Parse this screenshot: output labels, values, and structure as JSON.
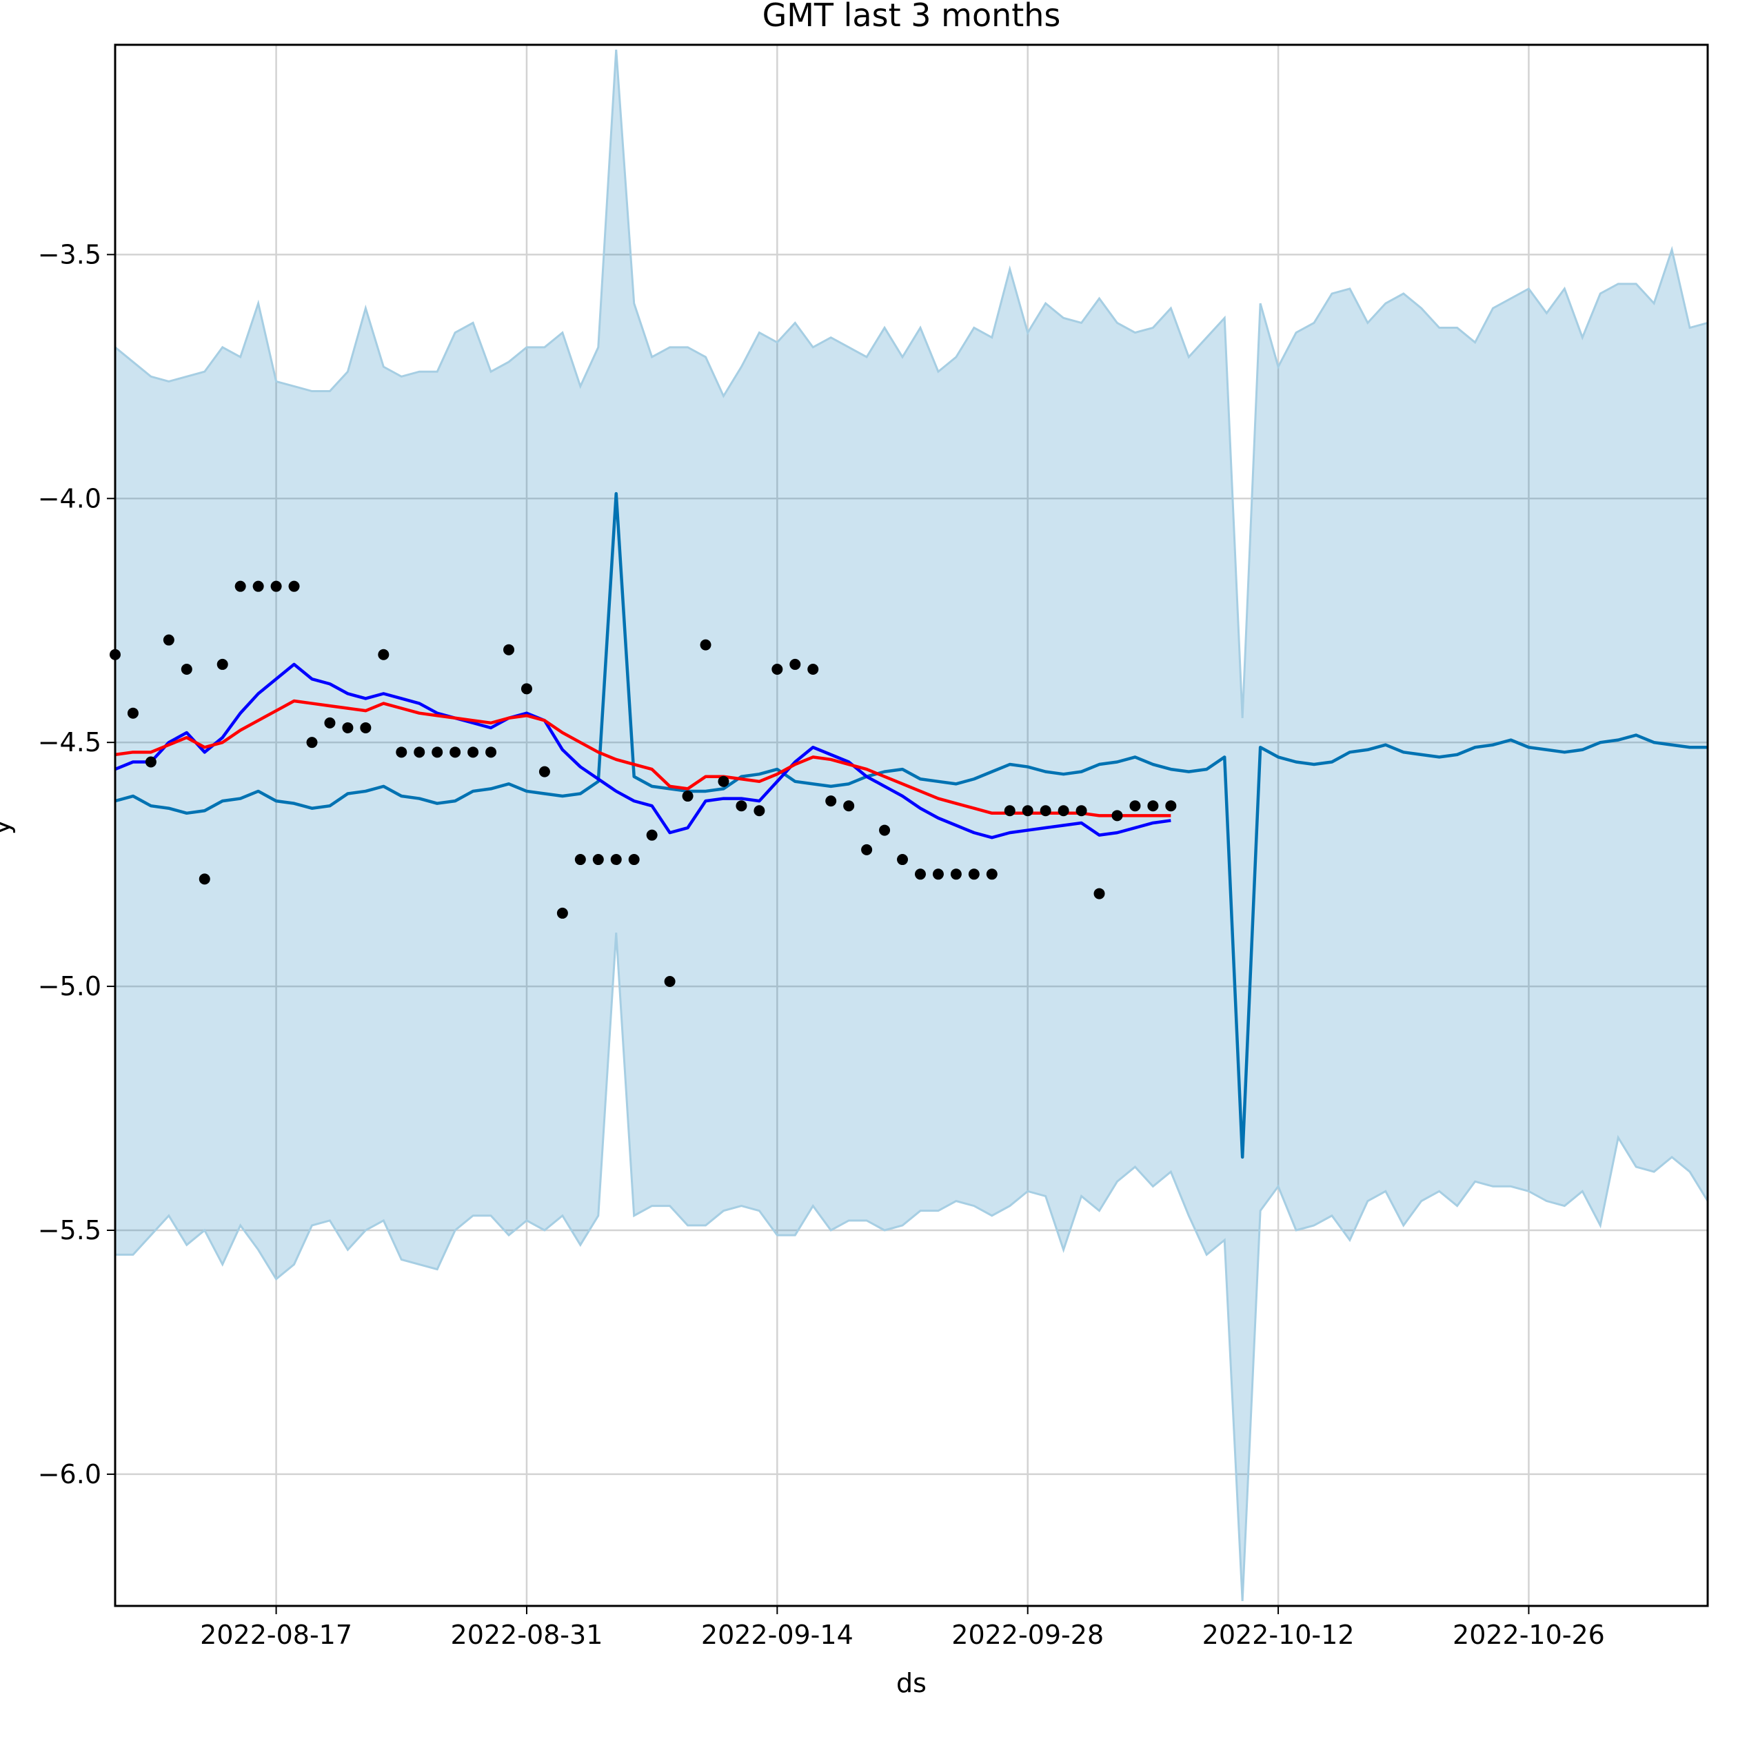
{
  "chart_data": {
    "type": "line",
    "title": "GMT last 3 months",
    "xlabel": "ds",
    "ylabel": "y",
    "x_tick_labels": [
      "2022-08-17",
      "2022-08-31",
      "2022-09-14",
      "2022-09-28",
      "2022-10-12",
      "2022-10-26"
    ],
    "y_tick_labels": [
      "−3.5",
      "−4.0",
      "−4.5",
      "−5.0",
      "−5.5",
      "−6.0"
    ],
    "x_ticks": [
      "2022-08-17",
      "2022-08-31",
      "2022-09-14",
      "2022-09-28",
      "2022-10-12",
      "2022-10-26"
    ],
    "y_ticks": [
      -3.5,
      -4.0,
      -4.5,
      -5.0,
      -5.5,
      -6.0
    ],
    "xlim": [
      "2022-08-08",
      "2022-11-05"
    ],
    "ylim": [
      -6.27,
      -3.07
    ],
    "grid": true,
    "colors": {
      "band_fill": "#0072b2",
      "band_edge": "#a6cee3",
      "forecast": "#0072b2",
      "fit_blue": "#0000ff",
      "fit_red": "#ff0000",
      "observed": "#000000",
      "grid": "#d3d3d3"
    },
    "series": [
      {
        "kind": "band",
        "x": [
          "2022-08-08",
          "2022-08-09",
          "2022-08-10",
          "2022-08-11",
          "2022-08-12",
          "2022-08-13",
          "2022-08-14",
          "2022-08-15",
          "2022-08-16",
          "2022-08-17",
          "2022-08-18",
          "2022-08-19",
          "2022-08-20",
          "2022-08-21",
          "2022-08-22",
          "2022-08-23",
          "2022-08-24",
          "2022-08-25",
          "2022-08-26",
          "2022-08-27",
          "2022-08-28",
          "2022-08-29",
          "2022-08-30",
          "2022-08-31",
          "2022-09-01",
          "2022-09-02",
          "2022-09-03",
          "2022-09-04",
          "2022-09-05",
          "2022-09-06",
          "2022-09-07",
          "2022-09-08",
          "2022-09-09",
          "2022-09-10",
          "2022-09-11",
          "2022-09-12",
          "2022-09-13",
          "2022-09-14",
          "2022-09-15",
          "2022-09-16",
          "2022-09-17",
          "2022-09-18",
          "2022-09-19",
          "2022-09-20",
          "2022-09-21",
          "2022-09-22",
          "2022-09-23",
          "2022-09-24",
          "2022-09-25",
          "2022-09-26",
          "2022-09-27",
          "2022-09-28",
          "2022-09-29",
          "2022-09-30",
          "2022-10-01",
          "2022-10-02",
          "2022-10-03",
          "2022-10-04",
          "2022-10-05",
          "2022-10-06",
          "2022-10-07",
          "2022-10-08",
          "2022-10-09",
          "2022-10-10",
          "2022-10-11",
          "2022-10-12",
          "2022-10-13",
          "2022-10-14",
          "2022-10-15",
          "2022-10-16",
          "2022-10-17",
          "2022-10-18",
          "2022-10-19",
          "2022-10-20",
          "2022-10-21",
          "2022-10-22",
          "2022-10-23",
          "2022-10-24",
          "2022-10-25",
          "2022-10-26",
          "2022-10-27",
          "2022-10-28",
          "2022-10-29",
          "2022-10-30",
          "2022-10-31",
          "2022-11-01",
          "2022-11-02",
          "2022-11-03",
          "2022-11-04",
          "2022-11-05"
        ],
        "upper": [
          -3.69,
          -3.72,
          -3.75,
          -3.76,
          -3.75,
          -3.74,
          -3.69,
          -3.71,
          -3.6,
          -3.76,
          -3.77,
          -3.78,
          -3.78,
          -3.74,
          -3.61,
          -3.73,
          -3.75,
          -3.74,
          -3.74,
          -3.66,
          -3.64,
          -3.74,
          -3.72,
          -3.69,
          -3.69,
          -3.66,
          -3.77,
          -3.69,
          -3.08,
          -3.6,
          -3.71,
          -3.69,
          -3.69,
          -3.71,
          -3.79,
          -3.73,
          -3.66,
          -3.68,
          -3.64,
          -3.69,
          -3.67,
          -3.69,
          -3.71,
          -3.65,
          -3.71,
          -3.65,
          -3.74,
          -3.71,
          -3.65,
          -3.67,
          -3.53,
          -3.66,
          -3.6,
          -3.63,
          -3.64,
          -3.59,
          -3.64,
          -3.66,
          -3.65,
          -3.61,
          -3.71,
          -3.67,
          -3.63,
          -4.45,
          -3.6,
          -3.73,
          -3.66,
          -3.64,
          -3.58,
          -3.57,
          -3.64,
          -3.6,
          -3.58,
          -3.61,
          -3.65,
          -3.65,
          -3.68,
          -3.61,
          -3.59,
          -3.57,
          -3.62,
          -3.57,
          -3.67,
          -3.58,
          -3.56,
          -3.56,
          -3.6,
          -3.49,
          -3.65,
          -3.64
        ],
        "lower": [
          -5.55,
          -5.55,
          -5.51,
          -5.47,
          -5.53,
          -5.5,
          -5.57,
          -5.49,
          -5.54,
          -5.6,
          -5.57,
          -5.49,
          -5.48,
          -5.54,
          -5.5,
          -5.48,
          -5.56,
          -5.57,
          -5.58,
          -5.5,
          -5.47,
          -5.47,
          -5.51,
          -5.48,
          -5.5,
          -5.47,
          -5.53,
          -5.47,
          -4.89,
          -5.47,
          -5.45,
          -5.45,
          -5.49,
          -5.49,
          -5.46,
          -5.45,
          -5.46,
          -5.51,
          -5.51,
          -5.45,
          -5.5,
          -5.48,
          -5.48,
          -5.5,
          -5.49,
          -5.46,
          -5.46,
          -5.44,
          -5.45,
          -5.47,
          -5.45,
          -5.42,
          -5.43,
          -5.54,
          -5.43,
          -5.46,
          -5.4,
          -5.37,
          -5.41,
          -5.38,
          -5.47,
          -5.55,
          -5.52,
          -6.26,
          -5.46,
          -5.41,
          -5.5,
          -5.49,
          -5.47,
          -5.52,
          -5.44,
          -5.42,
          -5.49,
          -5.44,
          -5.42,
          -5.45,
          -5.4,
          -5.41,
          -5.41,
          -5.42,
          -5.44,
          -5.45,
          -5.42,
          -5.49,
          -5.31,
          -5.37,
          -5.38,
          -5.35,
          -5.38,
          -5.44
        ]
      },
      {
        "kind": "line",
        "role": "forecast",
        "x": [
          "2022-08-08",
          "2022-08-09",
          "2022-08-10",
          "2022-08-11",
          "2022-08-12",
          "2022-08-13",
          "2022-08-14",
          "2022-08-15",
          "2022-08-16",
          "2022-08-17",
          "2022-08-18",
          "2022-08-19",
          "2022-08-20",
          "2022-08-21",
          "2022-08-22",
          "2022-08-23",
          "2022-08-24",
          "2022-08-25",
          "2022-08-26",
          "2022-08-27",
          "2022-08-28",
          "2022-08-29",
          "2022-08-30",
          "2022-08-31",
          "2022-09-01",
          "2022-09-02",
          "2022-09-03",
          "2022-09-04",
          "2022-09-05",
          "2022-09-06",
          "2022-09-07",
          "2022-09-08",
          "2022-09-09",
          "2022-09-10",
          "2022-09-11",
          "2022-09-12",
          "2022-09-13",
          "2022-09-14",
          "2022-09-15",
          "2022-09-16",
          "2022-09-17",
          "2022-09-18",
          "2022-09-19",
          "2022-09-20",
          "2022-09-21",
          "2022-09-22",
          "2022-09-23",
          "2022-09-24",
          "2022-09-25",
          "2022-09-26",
          "2022-09-27",
          "2022-09-28",
          "2022-09-29",
          "2022-09-30",
          "2022-10-01",
          "2022-10-02",
          "2022-10-03",
          "2022-10-04",
          "2022-10-05",
          "2022-10-06",
          "2022-10-07",
          "2022-10-08",
          "2022-10-09",
          "2022-10-10",
          "2022-10-11",
          "2022-10-12",
          "2022-10-13",
          "2022-10-14",
          "2022-10-15",
          "2022-10-16",
          "2022-10-17",
          "2022-10-18",
          "2022-10-19",
          "2022-10-20",
          "2022-10-21",
          "2022-10-22",
          "2022-10-23",
          "2022-10-24",
          "2022-10-25",
          "2022-10-26",
          "2022-10-27",
          "2022-10-28",
          "2022-10-29",
          "2022-10-30",
          "2022-10-31",
          "2022-11-01",
          "2022-11-02",
          "2022-11-03",
          "2022-11-04",
          "2022-11-05"
        ],
        "y": [
          -4.62,
          -4.61,
          -4.63,
          -4.635,
          -4.645,
          -4.64,
          -4.62,
          -4.615,
          -4.6,
          -4.62,
          -4.625,
          -4.635,
          -4.63,
          -4.605,
          -4.6,
          -4.59,
          -4.61,
          -4.615,
          -4.625,
          -4.62,
          -4.6,
          -4.595,
          -4.585,
          -4.6,
          -4.605,
          -4.61,
          -4.605,
          -4.58,
          -3.99,
          -4.57,
          -4.59,
          -4.595,
          -4.6,
          -4.6,
          -4.595,
          -4.57,
          -4.565,
          -4.555,
          -4.58,
          -4.585,
          -4.59,
          -4.585,
          -4.57,
          -4.56,
          -4.555,
          -4.575,
          -4.58,
          -4.585,
          -4.575,
          -4.56,
          -4.545,
          -4.55,
          -4.56,
          -4.565,
          -4.56,
          -4.545,
          -4.54,
          -4.53,
          -4.545,
          -4.555,
          -4.56,
          -4.555,
          -4.53,
          -5.35,
          -4.51,
          -4.53,
          -4.54,
          -4.545,
          -4.54,
          -4.52,
          -4.515,
          -4.505,
          -4.52,
          -4.525,
          -4.53,
          -4.525,
          -4.51,
          -4.505,
          -4.495,
          -4.51,
          -4.515,
          -4.52,
          -4.515,
          -4.5,
          -4.495,
          -4.485,
          -4.5,
          -4.505,
          -4.51,
          -4.51
        ]
      },
      {
        "kind": "line",
        "role": "fit-blue",
        "x": [
          "2022-08-08",
          "2022-08-09",
          "2022-08-10",
          "2022-08-11",
          "2022-08-12",
          "2022-08-13",
          "2022-08-14",
          "2022-08-15",
          "2022-08-16",
          "2022-08-17",
          "2022-08-18",
          "2022-08-19",
          "2022-08-20",
          "2022-08-21",
          "2022-08-22",
          "2022-08-23",
          "2022-08-24",
          "2022-08-25",
          "2022-08-26",
          "2022-08-27",
          "2022-08-28",
          "2022-08-29",
          "2022-08-30",
          "2022-08-31",
          "2022-09-01",
          "2022-09-02",
          "2022-09-03",
          "2022-09-04",
          "2022-09-05",
          "2022-09-06",
          "2022-09-07",
          "2022-09-08",
          "2022-09-09",
          "2022-09-10",
          "2022-09-11",
          "2022-09-12",
          "2022-09-13",
          "2022-09-14",
          "2022-09-15",
          "2022-09-16",
          "2022-09-17",
          "2022-09-18",
          "2022-09-19",
          "2022-09-20",
          "2022-09-21",
          "2022-09-22",
          "2022-09-23",
          "2022-09-24",
          "2022-09-25",
          "2022-09-26",
          "2022-09-27",
          "2022-09-28",
          "2022-09-29",
          "2022-09-30",
          "2022-10-01",
          "2022-10-02",
          "2022-10-03",
          "2022-10-04",
          "2022-10-05",
          "2022-10-06"
        ],
        "y": [
          -4.555,
          -4.54,
          -4.54,
          -4.5,
          -4.48,
          -4.52,
          -4.49,
          -4.44,
          -4.4,
          -4.37,
          -4.34,
          -4.37,
          -4.38,
          -4.4,
          -4.41,
          -4.4,
          -4.41,
          -4.42,
          -4.44,
          -4.45,
          -4.46,
          -4.47,
          -4.45,
          -4.44,
          -4.455,
          -4.515,
          -4.55,
          -4.575,
          -4.6,
          -4.62,
          -4.63,
          -4.685,
          -4.675,
          -4.62,
          -4.615,
          -4.615,
          -4.62,
          -4.58,
          -4.54,
          -4.51,
          -4.525,
          -4.54,
          -4.57,
          -4.59,
          -4.61,
          -4.635,
          -4.655,
          -4.67,
          -4.685,
          -4.695,
          -4.685,
          -4.68,
          -4.675,
          -4.67,
          -4.665,
          -4.69,
          -4.685,
          -4.675,
          -4.665,
          -4.66
        ]
      },
      {
        "kind": "line",
        "role": "fit-red",
        "x": [
          "2022-08-08",
          "2022-08-09",
          "2022-08-10",
          "2022-08-11",
          "2022-08-12",
          "2022-08-13",
          "2022-08-14",
          "2022-08-15",
          "2022-08-16",
          "2022-08-17",
          "2022-08-18",
          "2022-08-19",
          "2022-08-20",
          "2022-08-21",
          "2022-08-22",
          "2022-08-23",
          "2022-08-24",
          "2022-08-25",
          "2022-08-26",
          "2022-08-27",
          "2022-08-28",
          "2022-08-29",
          "2022-08-30",
          "2022-08-31",
          "2022-09-01",
          "2022-09-02",
          "2022-09-03",
          "2022-09-04",
          "2022-09-05",
          "2022-09-06",
          "2022-09-07",
          "2022-09-08",
          "2022-09-09",
          "2022-09-10",
          "2022-09-11",
          "2022-09-12",
          "2022-09-13",
          "2022-09-14",
          "2022-09-15",
          "2022-09-16",
          "2022-09-17",
          "2022-09-18",
          "2022-09-19",
          "2022-09-20",
          "2022-09-21",
          "2022-09-22",
          "2022-09-23",
          "2022-09-24",
          "2022-09-25",
          "2022-09-26",
          "2022-09-27",
          "2022-09-28",
          "2022-09-29",
          "2022-09-30",
          "2022-10-01",
          "2022-10-02",
          "2022-10-03",
          "2022-10-04",
          "2022-10-05",
          "2022-10-06"
        ],
        "y": [
          -4.525,
          -4.52,
          -4.52,
          -4.505,
          -4.49,
          -4.51,
          -4.5,
          -4.475,
          -4.455,
          -4.435,
          -4.415,
          -4.42,
          -4.425,
          -4.43,
          -4.435,
          -4.42,
          -4.43,
          -4.44,
          -4.445,
          -4.45,
          -4.455,
          -4.46,
          -4.45,
          -4.445,
          -4.455,
          -4.48,
          -4.5,
          -4.52,
          -4.535,
          -4.545,
          -4.555,
          -4.59,
          -4.595,
          -4.57,
          -4.57,
          -4.575,
          -4.58,
          -4.565,
          -4.545,
          -4.53,
          -4.535,
          -4.545,
          -4.555,
          -4.57,
          -4.585,
          -4.6,
          -4.615,
          -4.625,
          -4.635,
          -4.645,
          -4.645,
          -4.645,
          -4.645,
          -4.645,
          -4.645,
          -4.65,
          -4.65,
          -4.65,
          -4.65,
          -4.65
        ]
      },
      {
        "kind": "scatter",
        "role": "observed",
        "x": [
          "2022-08-08",
          "2022-08-09",
          "2022-08-10",
          "2022-08-11",
          "2022-08-12",
          "2022-08-13",
          "2022-08-14",
          "2022-08-15",
          "2022-08-16",
          "2022-08-17",
          "2022-08-18",
          "2022-08-19",
          "2022-08-20",
          "2022-08-21",
          "2022-08-22",
          "2022-08-23",
          "2022-08-24",
          "2022-08-25",
          "2022-08-26",
          "2022-08-27",
          "2022-08-28",
          "2022-08-29",
          "2022-08-30",
          "2022-08-31",
          "2022-09-01",
          "2022-09-02",
          "2022-09-03",
          "2022-09-04",
          "2022-09-05",
          "2022-09-06",
          "2022-09-07",
          "2022-09-08",
          "2022-09-09",
          "2022-09-10",
          "2022-09-11",
          "2022-09-12",
          "2022-09-13",
          "2022-09-14",
          "2022-09-15",
          "2022-09-16",
          "2022-09-17",
          "2022-09-18",
          "2022-09-19",
          "2022-09-20",
          "2022-09-21",
          "2022-09-22",
          "2022-09-23",
          "2022-09-24",
          "2022-09-25",
          "2022-09-26",
          "2022-09-27",
          "2022-09-28",
          "2022-09-29",
          "2022-09-30",
          "2022-10-01",
          "2022-10-02",
          "2022-10-03",
          "2022-10-04",
          "2022-10-05",
          "2022-10-06"
        ],
        "y": [
          -4.32,
          -4.44,
          -4.54,
          -4.29,
          -4.35,
          -4.78,
          -4.34,
          -4.18,
          -4.18,
          -4.18,
          -4.18,
          -4.5,
          -4.46,
          -4.47,
          -4.47,
          -4.32,
          -4.52,
          -4.52,
          -4.52,
          -4.52,
          -4.52,
          -4.52,
          -4.31,
          -4.39,
          -4.56,
          -4.85,
          -4.74,
          -4.74,
          -4.74,
          -4.74,
          -4.69,
          -4.99,
          -4.61,
          -4.3,
          -4.58,
          -4.63,
          -4.64,
          -4.35,
          -4.34,
          -4.35,
          -4.62,
          -4.63,
          -4.72,
          -4.68,
          -4.74,
          -4.77,
          -4.77,
          -4.77,
          -4.77,
          -4.77,
          -4.64,
          -4.64,
          -4.64,
          -4.64,
          -4.64,
          -4.81,
          -4.65,
          -4.63,
          -4.63,
          -4.63
        ]
      }
    ]
  }
}
